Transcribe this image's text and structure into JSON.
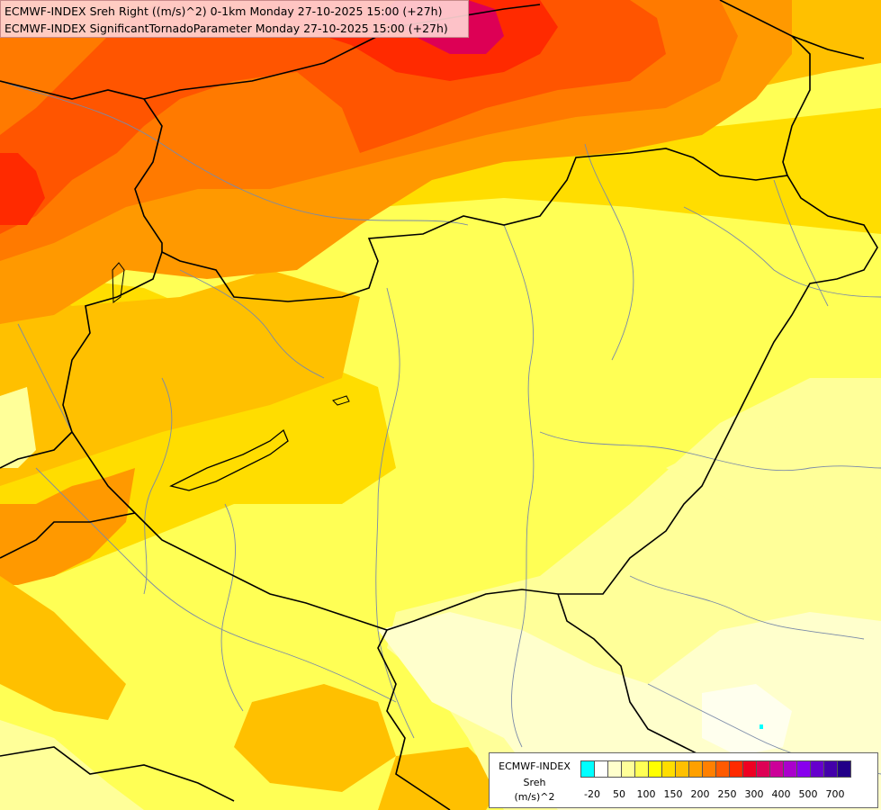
{
  "title": {
    "line1": "ECMWF-INDEX Sreh Right ((m/s)^2) 0-1km Monday 27-10-2025 15:00 (+27h)",
    "line2": "ECMWF-INDEX SignificantTornadoParameter Monday 27-10-2025 15:00 (+27h)"
  },
  "legend": {
    "line1": "ECMWF-INDEX",
    "line2": "Sreh",
    "line3": "(m/s)^2",
    "colors": [
      "#00ffff",
      "#ffffff",
      "#ffffcc",
      "#ffff99",
      "#ffff55",
      "#ffff00",
      "#ffdd00",
      "#ffc000",
      "#ffa000",
      "#ff8000",
      "#ff5a00",
      "#ff2a00",
      "#ee0022",
      "#dd0055",
      "#cc0099",
      "#aa00cc",
      "#8800ee",
      "#6600cc",
      "#4400aa",
      "#220088"
    ],
    "ticks": [
      "-20",
      "50",
      "100",
      "150",
      "200",
      "250",
      "300",
      "400",
      "500",
      "700"
    ]
  },
  "field_colors": {
    "very_light": "#ffffcc",
    "light_yellow": "#ffff99",
    "yellow": "#ffff55",
    "gold": "#ffdd00",
    "orange_light": "#ffc000",
    "orange": "#ff9900",
    "orange_dark": "#ff7a00",
    "red_orange": "#ff5500",
    "red": "#ff2a00",
    "crimson": "#dd0055"
  }
}
